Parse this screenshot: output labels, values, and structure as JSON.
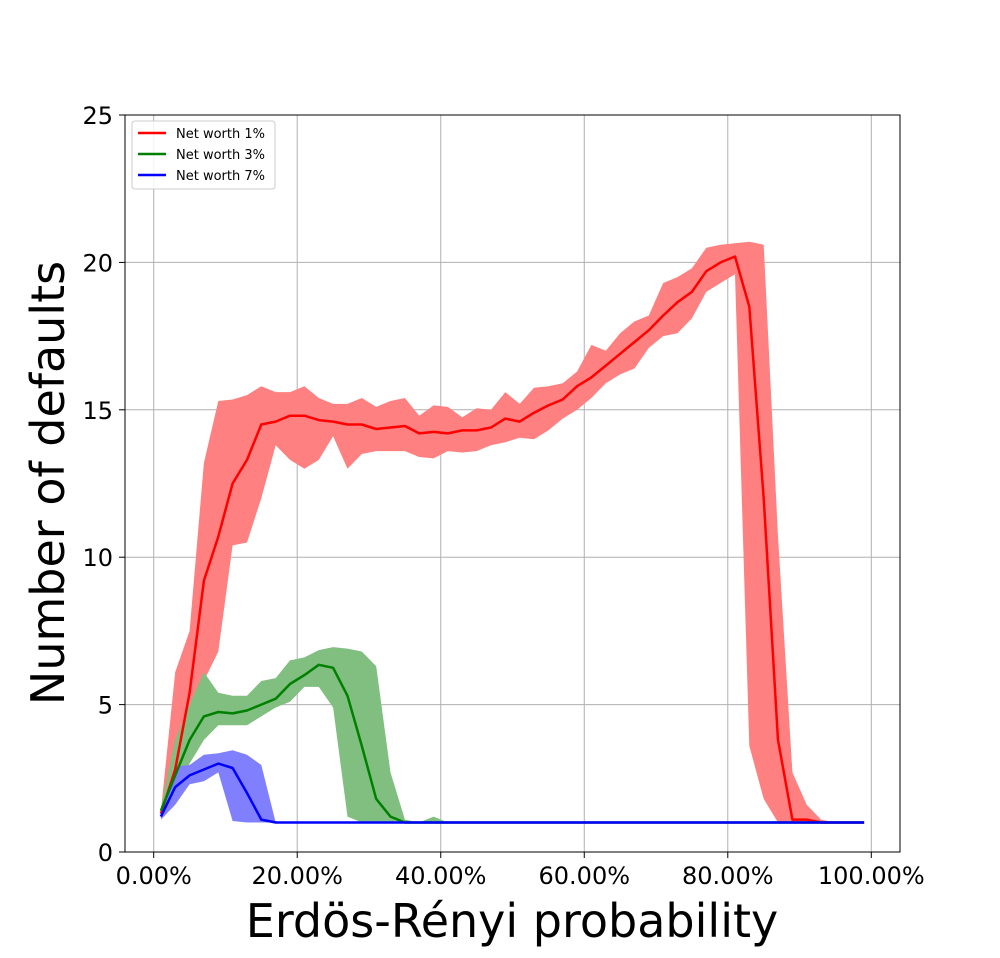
{
  "chart_data": {
    "type": "line",
    "title": "",
    "xlabel": "Erdös-Rényi probability",
    "ylabel": "Number of defaults",
    "xlim": [
      -0.04,
      1.04
    ],
    "ylim": [
      0,
      25
    ],
    "x_ticks": [
      0,
      0.2,
      0.4,
      0.6,
      0.8,
      1.0
    ],
    "x_tick_labels": [
      "0.00%",
      "20.00%",
      "40.00%",
      "60.00%",
      "80.00%",
      "100.00%"
    ],
    "y_ticks": [
      0,
      5,
      10,
      15,
      20,
      25
    ],
    "y_tick_labels": [
      "0",
      "5",
      "10",
      "15",
      "20",
      "25"
    ],
    "grid": true,
    "legend_position": "top-left",
    "series": [
      {
        "name": "Net worth 1%",
        "color": "#ff0000",
        "band_color": "#ff8080",
        "x": [
          0.01,
          0.03,
          0.05,
          0.07,
          0.09,
          0.11,
          0.13,
          0.15,
          0.17,
          0.19,
          0.21,
          0.23,
          0.25,
          0.27,
          0.29,
          0.31,
          0.33,
          0.35,
          0.37,
          0.39,
          0.41,
          0.43,
          0.45,
          0.47,
          0.49,
          0.51,
          0.53,
          0.55,
          0.57,
          0.59,
          0.61,
          0.63,
          0.65,
          0.67,
          0.69,
          0.71,
          0.73,
          0.75,
          0.77,
          0.79,
          0.81,
          0.83,
          0.85,
          0.87,
          0.89,
          0.91,
          0.93,
          0.95,
          0.97,
          0.99
        ],
        "values": [
          1.3,
          2.8,
          5.4,
          9.2,
          10.7,
          12.5,
          13.3,
          14.5,
          14.6,
          14.8,
          14.8,
          14.65,
          14.6,
          14.5,
          14.5,
          14.35,
          14.4,
          14.45,
          14.2,
          14.25,
          14.2,
          14.3,
          14.3,
          14.4,
          14.7,
          14.6,
          14.9,
          15.15,
          15.35,
          15.8,
          16.1,
          16.5,
          16.9,
          17.3,
          17.7,
          18.2,
          18.65,
          19.0,
          19.7,
          20.0,
          20.2,
          18.5,
          12.0,
          3.8,
          1.1,
          1.1,
          1.0,
          1.0,
          1.0,
          1.0
        ],
        "lower": [
          1.3,
          2.3,
          3.8,
          5.8,
          6.8,
          10.4,
          10.5,
          12.0,
          13.8,
          13.3,
          13.0,
          13.3,
          14.1,
          13.0,
          13.5,
          13.6,
          13.6,
          13.6,
          13.4,
          13.35,
          13.6,
          13.55,
          13.6,
          13.8,
          13.9,
          14.05,
          14.0,
          14.3,
          14.7,
          15.0,
          15.4,
          15.9,
          16.2,
          16.4,
          17.1,
          17.5,
          17.6,
          18.1,
          19.0,
          19.3,
          19.6,
          3.6,
          1.8,
          1.0,
          1.0,
          1.0,
          1.0,
          1.0,
          1.0,
          1.0
        ],
        "upper": [
          1.4,
          6.1,
          7.5,
          13.2,
          15.3,
          15.35,
          15.5,
          15.8,
          15.6,
          15.6,
          15.8,
          15.4,
          15.2,
          15.2,
          15.4,
          15.1,
          15.3,
          15.4,
          14.8,
          15.15,
          15.1,
          14.75,
          15.05,
          15.0,
          15.6,
          15.2,
          15.75,
          15.8,
          15.9,
          16.3,
          17.2,
          17.0,
          17.6,
          18.0,
          18.2,
          19.3,
          19.5,
          19.8,
          20.5,
          20.6,
          20.65,
          20.7,
          20.6,
          10.7,
          2.7,
          1.6,
          1.1,
          1.0,
          1.0,
          1.0
        ]
      },
      {
        "name": "Net worth 3%",
        "color": "#008000",
        "band_color": "#80bf80",
        "x": [
          0.01,
          0.03,
          0.05,
          0.07,
          0.09,
          0.11,
          0.13,
          0.15,
          0.17,
          0.19,
          0.21,
          0.23,
          0.25,
          0.27,
          0.29,
          0.31,
          0.33,
          0.35,
          0.37,
          0.39,
          0.41,
          0.43,
          0.45,
          0.47,
          0.49,
          0.51,
          0.53,
          0.55,
          0.57,
          0.59,
          0.61,
          0.63,
          0.65,
          0.67,
          0.69,
          0.71,
          0.73,
          0.75,
          0.77,
          0.79,
          0.81,
          0.83,
          0.85,
          0.87,
          0.89,
          0.91,
          0.93,
          0.95,
          0.97,
          0.99
        ],
        "values": [
          1.4,
          2.6,
          3.8,
          4.6,
          4.75,
          4.7,
          4.8,
          5.0,
          5.2,
          5.7,
          6.0,
          6.35,
          6.25,
          5.3,
          3.6,
          1.8,
          1.2,
          1.0,
          1.0,
          1.0,
          1.0,
          1.0,
          1.0,
          1.0,
          1.0,
          1.0,
          1.0,
          1.0,
          1.0,
          1.0,
          1.0,
          1.0,
          1.0,
          1.0,
          1.0,
          1.0,
          1.0,
          1.0,
          1.0,
          1.0,
          1.0,
          1.0,
          1.0,
          1.0,
          1.0,
          1.0,
          1.0,
          1.0,
          1.0,
          1.0
        ],
        "lower": [
          1.3,
          2.0,
          3.0,
          3.8,
          4.3,
          4.3,
          4.3,
          4.6,
          4.9,
          5.1,
          5.6,
          5.6,
          4.9,
          1.2,
          1.0,
          1.0,
          1.0,
          1.0,
          1.0,
          1.0,
          1.0,
          1.0,
          1.0,
          1.0,
          1.0,
          1.0,
          1.0,
          1.0,
          1.0,
          1.0,
          1.0,
          1.0,
          1.0,
          1.0,
          1.0,
          1.0,
          1.0,
          1.0,
          1.0,
          1.0,
          1.0,
          1.0,
          1.0,
          1.0,
          1.0,
          1.0,
          1.0,
          1.0,
          1.0,
          1.0
        ],
        "upper": [
          1.5,
          3.8,
          5.0,
          6.1,
          5.4,
          5.3,
          5.3,
          5.8,
          5.9,
          6.5,
          6.6,
          6.85,
          6.95,
          6.9,
          6.8,
          6.3,
          2.7,
          1.1,
          1.0,
          1.2,
          1.0,
          1.0,
          1.0,
          1.0,
          1.0,
          1.0,
          1.0,
          1.0,
          1.0,
          1.0,
          1.0,
          1.0,
          1.0,
          1.0,
          1.0,
          1.0,
          1.0,
          1.0,
          1.0,
          1.0,
          1.0,
          1.0,
          1.0,
          1.0,
          1.0,
          1.0,
          1.0,
          1.0,
          1.0,
          1.0
        ]
      },
      {
        "name": "Net worth 7%",
        "color": "#0000ff",
        "band_color": "#8080ff",
        "x": [
          0.01,
          0.03,
          0.05,
          0.07,
          0.09,
          0.11,
          0.13,
          0.15,
          0.17,
          0.19,
          0.21,
          0.23,
          0.25,
          0.27,
          0.29,
          0.31,
          0.33,
          0.35,
          0.37,
          0.39,
          0.41,
          0.43,
          0.45,
          0.47,
          0.49,
          0.51,
          0.53,
          0.55,
          0.57,
          0.59,
          0.61,
          0.63,
          0.65,
          0.67,
          0.69,
          0.71,
          0.73,
          0.75,
          0.77,
          0.79,
          0.81,
          0.83,
          0.85,
          0.87,
          0.89,
          0.91,
          0.93,
          0.95,
          0.97,
          0.99
        ],
        "values": [
          1.2,
          2.2,
          2.6,
          2.8,
          3.0,
          2.85,
          2.0,
          1.1,
          1.0,
          1.0,
          1.0,
          1.0,
          1.0,
          1.0,
          1.0,
          1.0,
          1.0,
          1.0,
          1.0,
          1.0,
          1.0,
          1.0,
          1.0,
          1.0,
          1.0,
          1.0,
          1.0,
          1.0,
          1.0,
          1.0,
          1.0,
          1.0,
          1.0,
          1.0,
          1.0,
          1.0,
          1.0,
          1.0,
          1.0,
          1.0,
          1.0,
          1.0,
          1.0,
          1.0,
          1.0,
          1.0,
          1.0,
          1.0,
          1.0,
          1.0
        ],
        "lower": [
          1.1,
          1.6,
          2.3,
          2.4,
          2.7,
          1.05,
          1.0,
          1.0,
          1.0,
          1.0,
          1.0,
          1.0,
          1.0,
          1.0,
          1.0,
          1.0,
          1.0,
          1.0,
          1.0,
          1.0,
          1.0,
          1.0,
          1.0,
          1.0,
          1.0,
          1.0,
          1.0,
          1.0,
          1.0,
          1.0,
          1.0,
          1.0,
          1.0,
          1.0,
          1.0,
          1.0,
          1.0,
          1.0,
          1.0,
          1.0,
          1.0,
          1.0,
          1.0,
          1.0,
          1.0,
          1.0,
          1.0,
          1.0,
          1.0,
          1.0
        ],
        "upper": [
          1.3,
          2.9,
          2.95,
          3.3,
          3.35,
          3.45,
          3.3,
          2.95,
          1.0,
          1.0,
          1.0,
          1.0,
          1.0,
          1.0,
          1.0,
          1.0,
          1.0,
          1.0,
          1.0,
          1.0,
          1.0,
          1.0,
          1.0,
          1.0,
          1.0,
          1.0,
          1.0,
          1.0,
          1.0,
          1.0,
          1.0,
          1.0,
          1.0,
          1.0,
          1.0,
          1.0,
          1.0,
          1.0,
          1.0,
          1.0,
          1.0,
          1.0,
          1.0,
          1.0,
          1.0,
          1.0,
          1.0,
          1.0,
          1.0,
          1.0
        ]
      }
    ]
  }
}
